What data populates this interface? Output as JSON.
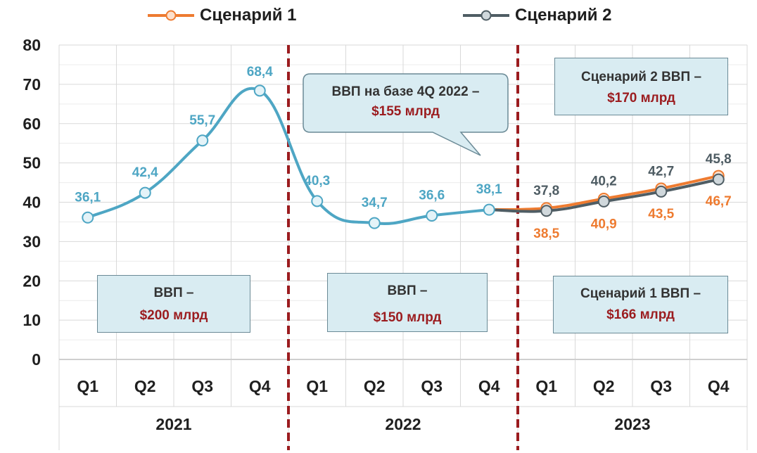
{
  "chart_data": {
    "type": "line",
    "title": "",
    "xlabel": "",
    "ylabel": "",
    "ylim": [
      0,
      80
    ],
    "yticks": [
      "0",
      "10",
      "20",
      "30",
      "40",
      "50",
      "60",
      "70",
      "80"
    ],
    "years": [
      "2021",
      "2022",
      "2023"
    ],
    "quarters": [
      "Q1",
      "Q2",
      "Q3",
      "Q4",
      "Q1",
      "Q2",
      "Q3",
      "Q4",
      "Q1",
      "Q2",
      "Q3",
      "Q4"
    ],
    "grid": true,
    "legend_position": "top",
    "series": [
      {
        "name": "",
        "color": "#4ea6c4",
        "x_index": [
          0,
          1,
          2,
          3,
          4,
          5,
          6,
          7
        ],
        "values": [
          36.1,
          42.4,
          55.7,
          68.4,
          40.3,
          34.7,
          36.6,
          38.1
        ],
        "labels": [
          "36,1",
          "42,4",
          "55,7",
          "68,4",
          "40,3",
          "34,7",
          "36,6",
          "38,1"
        ]
      },
      {
        "name": "Сценарий 1",
        "color": "#ee7b30",
        "x_index": [
          7,
          8,
          9,
          10,
          11
        ],
        "values": [
          38.1,
          38.5,
          40.9,
          43.5,
          46.7
        ],
        "labels": [
          "",
          "38,5",
          "40,9",
          "43,5",
          "46,7"
        ]
      },
      {
        "name": "Сценарий 2",
        "color": "#4f5d64",
        "x_index": [
          7,
          8,
          9,
          10,
          11
        ],
        "values": [
          38.1,
          37.8,
          40.2,
          42.7,
          45.8
        ],
        "labels": [
          "",
          "37,8",
          "40,2",
          "42,7",
          "45,8"
        ]
      }
    ]
  },
  "legend": {
    "s1": "Сценарий 1",
    "s2": "Сценарий 2"
  },
  "annotations": {
    "b2021": {
      "line1": "ВВП –",
      "line2": "$200 млрд"
    },
    "b2022": {
      "line1": "ВВП –",
      "line2": "$150 млрд"
    },
    "callout": {
      "line1": "ВВП на базе 4Q 2022  –",
      "line2": "$155 млрд"
    },
    "s2box": {
      "line1": "Сценарий 2 ВВП  –",
      "line2": "$170 млрд"
    },
    "s1box": {
      "line1": "Сценарий 1 ВВП –",
      "line2": "$166 млрд"
    }
  },
  "colors": {
    "base": "#4ea6c4",
    "scenario1": "#ee7b30",
    "scenario2": "#4f5d64",
    "divider": "#9b1c1f",
    "grid": "#d9d9d9"
  }
}
